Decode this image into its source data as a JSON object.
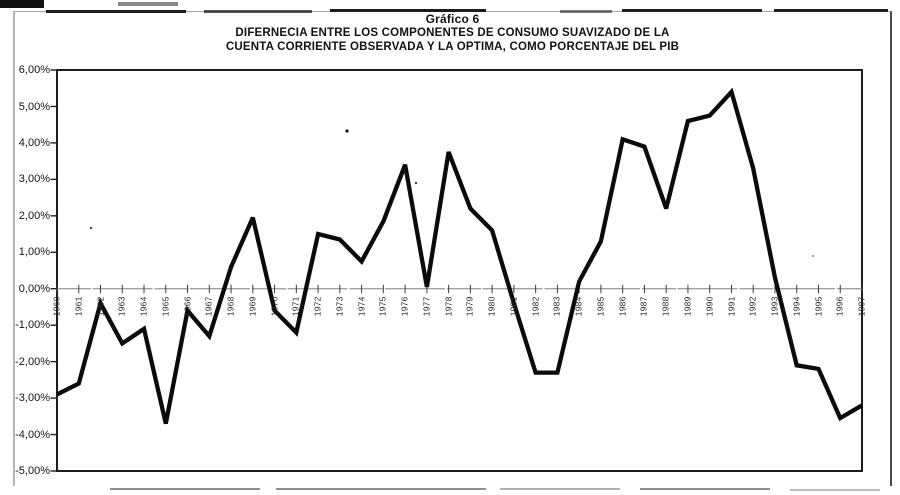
{
  "title": {
    "line1": "Gráfico 6",
    "line2": "DIFERNECIA ENTRE LOS COMPONENTES DE CONSUMO SUAVIZADO DE LA",
    "line3": "CUENTA CORRIENTE OBSERVADA Y LA OPTIMA, COMO PORCENTAJE DEL PIB"
  },
  "chart_data": {
    "type": "line",
    "title": "Gráfico 6",
    "subtitle": "DIFERNECIA ENTRE LOS COMPONENTES DE CONSUMO SUAVIZADO DE LA CUENTA CORRIENTE OBSERVADA Y LA OPTIMA, COMO PORCENTAJE DEL PIB",
    "x": [
      "1960",
      "1961",
      "1962",
      "1963",
      "1964",
      "1965",
      "1966",
      "1967",
      "1968",
      "1969",
      "1970",
      "1971",
      "1972",
      "1973",
      "1974",
      "1975",
      "1976",
      "1977",
      "1978",
      "1979",
      "1980",
      "1981",
      "1982",
      "1983",
      "1984",
      "1985",
      "1986",
      "1987",
      "1988",
      "1989",
      "1990",
      "1991",
      "1992",
      "1993",
      "1994",
      "1995",
      "1996",
      "1997"
    ],
    "values": [
      -2.9,
      -2.6,
      -0.4,
      -1.5,
      -1.1,
      -3.7,
      -0.6,
      -1.3,
      0.6,
      1.95,
      -0.6,
      -1.2,
      1.5,
      1.35,
      0.75,
      1.85,
      3.4,
      0.05,
      3.75,
      2.2,
      1.6,
      -0.4,
      -2.3,
      -2.3,
      0.2,
      1.3,
      4.1,
      3.9,
      2.2,
      4.6,
      4.75,
      5.4,
      3.3,
      0.3,
      -2.1,
      -2.2,
      -3.55,
      -3.2
    ],
    "y_tick_labels": [
      "6,00%",
      "5,00%",
      "4,00%",
      "3,00%",
      "2,00%",
      "1,00%",
      "0,00%",
      "-1,00%",
      "-2,00%",
      "-3,00%",
      "-4,00%",
      "-5,00%"
    ],
    "y_tick_values": [
      6,
      5,
      4,
      3,
      2,
      1,
      0,
      -1,
      -2,
      -3,
      -4,
      -5
    ],
    "ylim": [
      -5,
      6
    ],
    "xlabel": "",
    "ylabel": "",
    "legend": "none",
    "grid": "zero-line-only",
    "line_color": "#0b0b0b",
    "zero_line_color": "#969696",
    "frame_color": "#1c1c1c"
  }
}
